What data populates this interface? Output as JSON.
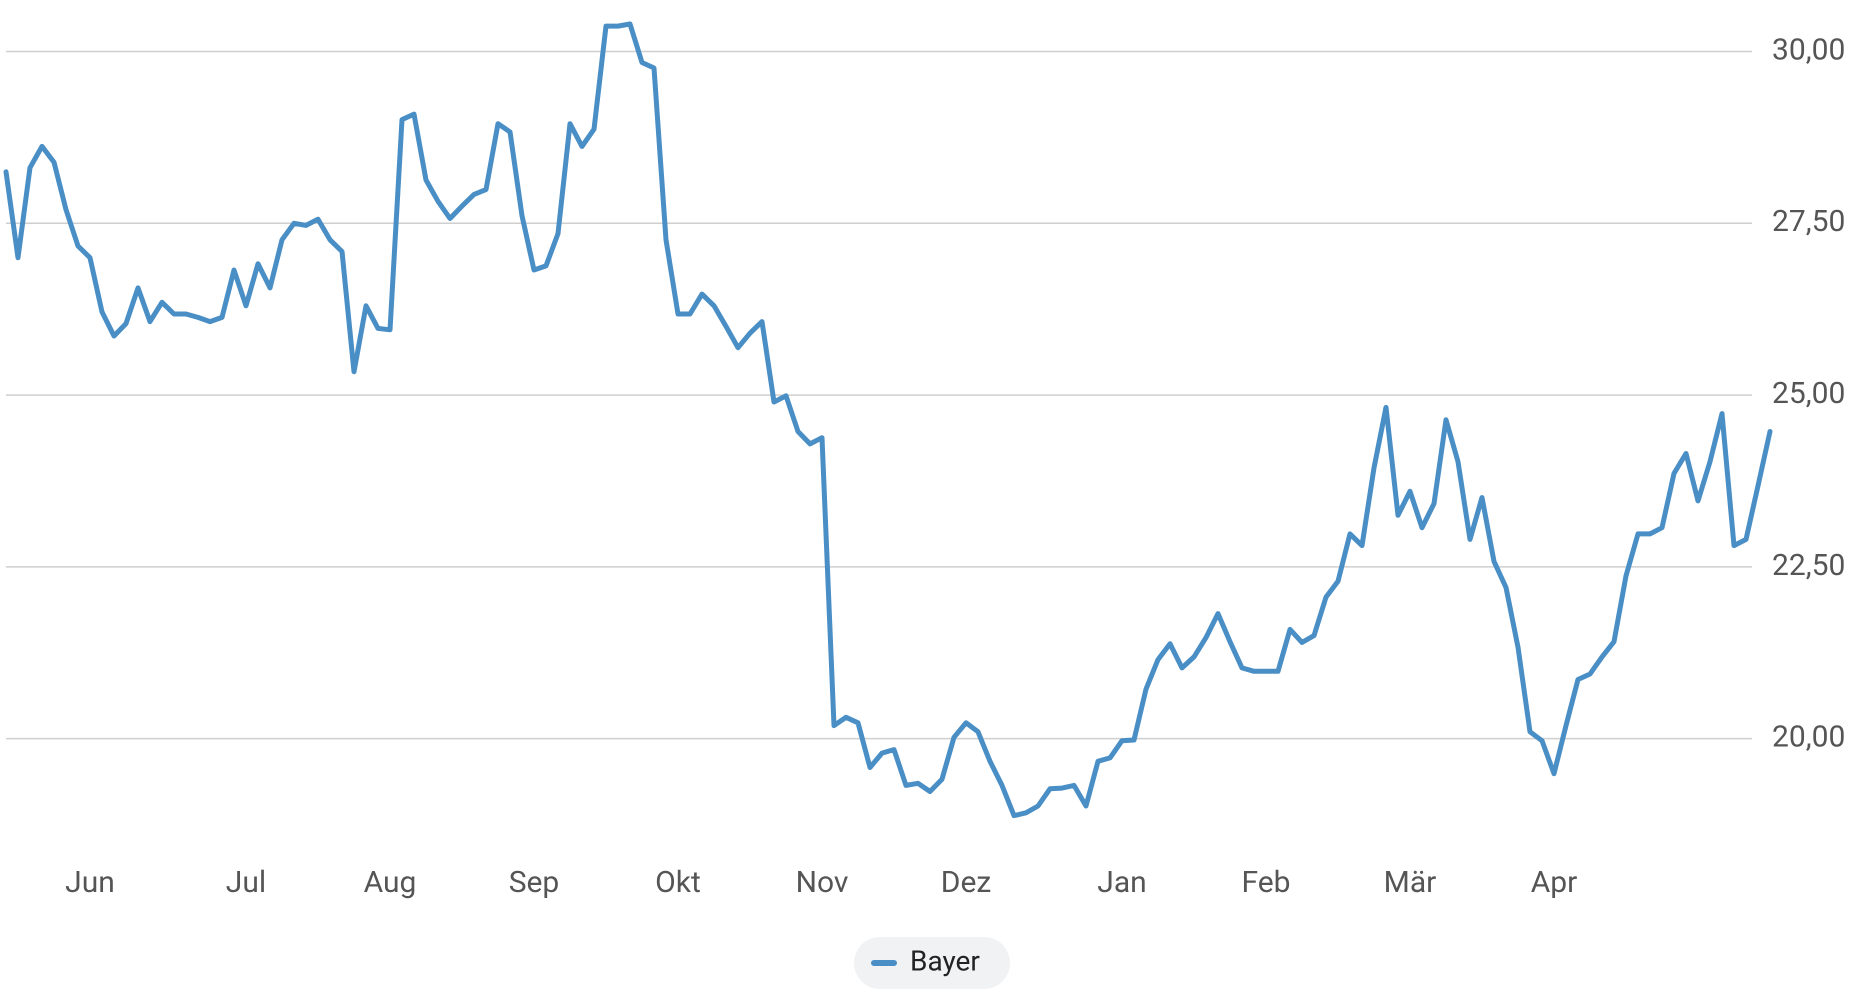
{
  "chart_data": {
    "type": "line",
    "categories": [
      null,
      null,
      null,
      null,
      null,
      null,
      null,
      "Jun",
      null,
      null,
      null,
      null,
      null,
      null,
      null,
      null,
      null,
      null,
      null,
      null,
      "Jul",
      null,
      null,
      null,
      null,
      null,
      null,
      null,
      null,
      null,
      null,
      null,
      "Aug",
      null,
      null,
      null,
      null,
      null,
      null,
      null,
      null,
      null,
      null,
      null,
      "Sep",
      null,
      null,
      null,
      null,
      null,
      null,
      null,
      null,
      null,
      null,
      null,
      "Okt",
      null,
      null,
      null,
      null,
      null,
      null,
      null,
      null,
      null,
      null,
      null,
      "Nov",
      null,
      null,
      null,
      null,
      null,
      null,
      null,
      null,
      null,
      null,
      null,
      "Dez",
      null,
      null,
      null,
      null,
      null,
      null,
      null,
      null,
      null,
      null,
      null,
      null,
      "Jan",
      null,
      null,
      null,
      null,
      null,
      null,
      null,
      null,
      null,
      null,
      null,
      "Feb",
      null,
      null,
      null,
      null,
      null,
      null,
      null,
      null,
      null,
      null,
      null,
      "Mär",
      null,
      null,
      null,
      null,
      null,
      null,
      null,
      null,
      null,
      null,
      null,
      "Apr",
      null,
      null,
      null,
      null,
      null,
      null,
      null,
      null,
      null,
      null,
      null,
      null,
      null,
      null,
      null,
      null,
      null,
      null
    ],
    "series": [
      {
        "name": "Bayer",
        "color": "#4a8ec6",
        "values": [
          28.25,
          27.0,
          28.31,
          28.62,
          28.39,
          27.7,
          27.17,
          27.0,
          26.21,
          25.86,
          26.04,
          26.56,
          26.07,
          26.35,
          26.18,
          26.18,
          26.13,
          26.07,
          26.13,
          26.82,
          26.3,
          26.91,
          26.56,
          27.26,
          27.5,
          27.47,
          27.56,
          27.26,
          27.09,
          25.34,
          26.3,
          25.97,
          25.95,
          29.01,
          29.09,
          28.13,
          27.82,
          27.57,
          27.75,
          27.92,
          27.99,
          28.95,
          28.83,
          27.61,
          26.82,
          26.88,
          27.35,
          28.95,
          28.62,
          28.87,
          30.37,
          30.37,
          30.4,
          29.84,
          29.76,
          27.26,
          26.18,
          26.18,
          26.47,
          26.3,
          26.0,
          25.69,
          25.9,
          26.07,
          24.9,
          24.99,
          24.47,
          24.29,
          24.38,
          20.19,
          20.31,
          20.23,
          19.58,
          19.79,
          19.84,
          19.32,
          19.35,
          19.23,
          19.41,
          20.02,
          20.23,
          20.1,
          19.67,
          19.32,
          18.88,
          18.92,
          19.02,
          19.27,
          19.28,
          19.32,
          19.02,
          19.67,
          19.72,
          19.97,
          19.98,
          20.72,
          21.15,
          21.38,
          21.03,
          21.19,
          21.47,
          21.82,
          21.41,
          21.03,
          20.98,
          20.98,
          20.98,
          21.59,
          21.4,
          21.5,
          22.06,
          22.29,
          22.98,
          22.81,
          23.94,
          24.82,
          23.25,
          23.6,
          23.07,
          23.42,
          24.64,
          24.03,
          22.9,
          23.51,
          22.58,
          22.2,
          21.33,
          20.1,
          19.97,
          19.49,
          20.19,
          20.86,
          20.94,
          21.19,
          21.41,
          22.37,
          22.98,
          22.98,
          23.07,
          23.86,
          24.15,
          23.46,
          24.03,
          24.73,
          22.81,
          22.9,
          23.68,
          24.47
        ]
      }
    ],
    "ylim": [
      18.35,
      30.75
    ],
    "yticks": [
      {
        "value": 20,
        "label": "20,00"
      },
      {
        "value": 22.5,
        "label": "22,50"
      },
      {
        "value": 25,
        "label": "25,00"
      },
      {
        "value": 27.5,
        "label": "27,50"
      },
      {
        "value": 30,
        "label": "30,00"
      }
    ],
    "grid": true,
    "legend": "bottom"
  }
}
